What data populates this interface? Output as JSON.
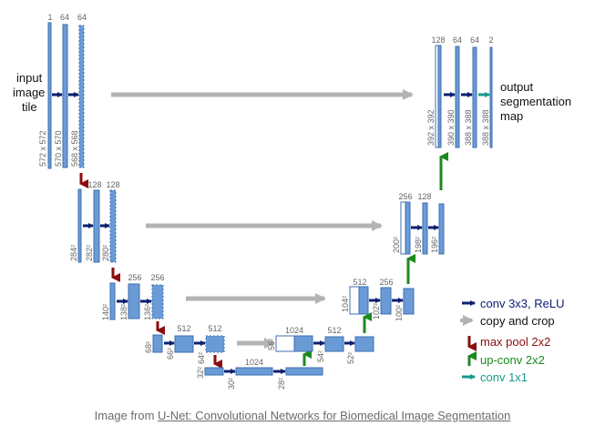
{
  "blocks": {
    "input_channels": "1",
    "enc1_channels_a": "64",
    "enc1_channels_b": "64",
    "enc1_size_a": "572 x 572",
    "enc1_size_b": "570 x 570",
    "enc1_size_c": "568 x 568",
    "enc2_channels_a": "128",
    "enc2_channels_b": "128",
    "enc2_size_a": "284²",
    "enc2_size_b": "282²",
    "enc2_size_c": "280²",
    "enc3_channels_a": "256",
    "enc3_channels_b": "256",
    "enc3_size_a": "140²",
    "enc3_size_b": "138²",
    "enc3_size_c": "136²",
    "enc4_channels_a": "512",
    "enc4_channels_b": "512",
    "enc4_size_a": "68²",
    "enc4_size_b": "66²",
    "enc4_size_c": "64²",
    "bottom_channels": "1024",
    "bottom_size_a": "32²",
    "bottom_size_b": "30²",
    "bottom_size_c": "28²",
    "dec4_channels_a": "1024",
    "dec4_channels_b": "512",
    "dec4_size_a": "56²",
    "dec4_size_b": "54²",
    "dec4_size_c": "52²",
    "dec3_channels_a": "512",
    "dec3_channels_b": "256",
    "dec3_size_a": "104²",
    "dec3_size_b": "102²",
    "dec3_size_c": "100²",
    "dec2_channels_a": "256",
    "dec2_channels_b": "128",
    "dec2_size_a": "200²",
    "dec2_size_b": "198²",
    "dec2_size_c": "196²",
    "dec1_channels_a": "128",
    "dec1_channels_b": "64",
    "dec1_channels_c": "64",
    "output_channels": "2",
    "dec1_size_a": "392 x 392",
    "dec1_size_b": "390 x 390",
    "dec1_size_c": "388 x 388",
    "dec1_size_d": "388 x 388"
  },
  "labels": {
    "input_line1": "input",
    "input_line2": "image",
    "input_line3": "tile",
    "output_line1": "output",
    "output_line2": "segmentation",
    "output_line3": "map"
  },
  "legend": {
    "conv": "conv 3x3, ReLU",
    "copy": "copy and crop",
    "pool": "max pool 2x2",
    "upconv": "up-conv 2x2",
    "conv1x1": "conv 1x1"
  },
  "colors": {
    "block_fill": "#6b9bd6",
    "block_stroke": "#3d6fb0",
    "conv_arrow": "#0b1f6e",
    "copy_arrow": "#b3b3b3",
    "pool_arrow": "#8b0d0d",
    "upconv_arrow": "#1c8a1c",
    "conv1x1_arrow": "#17998a"
  },
  "caption": {
    "prefix": "Image from ",
    "link": "U-Net: Convolutional Networks for Biomedical Image Segmentation"
  }
}
